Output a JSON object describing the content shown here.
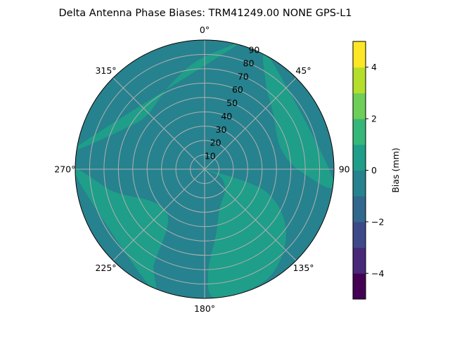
{
  "chart_data": {
    "type": "polar_contour",
    "title": "Delta Antenna Phase Biases: TRM41249.00      NONE GPS-L1",
    "angular_axis": {
      "zero_location": "N",
      "direction": "clockwise",
      "ticks": [
        0,
        45,
        90,
        135,
        180,
        225,
        270,
        315
      ],
      "tick_labels": [
        "0°",
        "45°",
        "90",
        "135°",
        "180°",
        "225°",
        "270°",
        "315°"
      ]
    },
    "radial_axis": {
      "range": [
        0,
        90
      ],
      "ticks": [
        10,
        20,
        30,
        40,
        50,
        60,
        70,
        80,
        90
      ],
      "tick_labels": [
        "10",
        "20",
        "30",
        "40",
        "50",
        "60",
        "70",
        "80",
        "90"
      ],
      "grid": true
    },
    "colorbar": {
      "label": "Bias (mm)",
      "range": [
        -5,
        5
      ],
      "levels": [
        -5,
        -4.5,
        -4,
        -3.5,
        -3,
        -2.5,
        -2,
        -1.5,
        -1,
        -0.5,
        0,
        0.5,
        1,
        1.5,
        2,
        2.5,
        3,
        3.5,
        4,
        4.5,
        5
      ],
      "level_values": [
        -5,
        -4,
        -3,
        -2,
        -1,
        0,
        1,
        2,
        3,
        4
      ],
      "colors": [
        "#440154",
        "#482878",
        "#3e4989",
        "#31688e",
        "#26828e",
        "#1f9e89",
        "#35b779",
        "#6ece58",
        "#b5de2b",
        "#fde725"
      ],
      "ticks": [
        -4,
        -2,
        0,
        2,
        4
      ],
      "tick_labels": [
        "−4",
        "−2",
        "0",
        "2",
        "4"
      ]
    },
    "data_regions": {
      "background_level": "-1 to 0",
      "background_color": "#26828e",
      "elevated_level": "0 to 1",
      "elevated_color": "#1f9e89",
      "elevated_regions": [
        {
          "name": "north-west lobe",
          "points": [
            [
              -80,
              90
            ],
            [
              -60,
              60
            ],
            [
              -45,
              55
            ],
            [
              -25,
              62
            ],
            [
              -5,
              75
            ],
            [
              12,
              88
            ],
            [
              15,
              90
            ]
          ]
        },
        {
          "name": "north-east lobe",
          "points": [
            [
              30,
              90
            ],
            [
              35,
              74
            ],
            [
              50,
              62
            ],
            [
              75,
              55
            ],
            [
              92,
              68
            ],
            [
              95,
              90
            ]
          ]
        },
        {
          "name": "south lobe",
          "points": [
            [
              95,
              0
            ],
            [
              110,
              45
            ],
            [
              128,
              72
            ],
            [
              150,
              88
            ],
            [
              175,
              90
            ],
            [
              178,
              72
            ],
            [
              170,
              46
            ],
            [
              160,
              30
            ],
            [
              135,
              20
            ],
            [
              115,
              12
            ]
          ]
        },
        {
          "name": "south-west lobe",
          "points": [
            [
              205,
              90
            ],
            [
              208,
              75
            ],
            [
              212,
              50
            ],
            [
              222,
              40
            ],
            [
              240,
              44
            ],
            [
              256,
              65
            ],
            [
              268,
              90
            ]
          ]
        }
      ]
    }
  }
}
